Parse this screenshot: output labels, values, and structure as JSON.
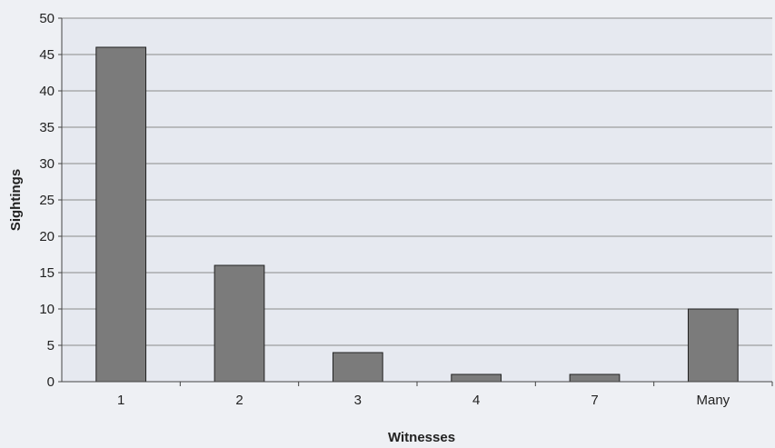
{
  "chart_data": {
    "type": "bar",
    "categories": [
      "1",
      "2",
      "3",
      "4",
      "7",
      "Many"
    ],
    "values": [
      46,
      16,
      4,
      1,
      1,
      10
    ],
    "xlabel": "Witnesses",
    "ylabel": "Sightings",
    "ylim": [
      0,
      50
    ],
    "yticks": [
      0,
      5,
      10,
      15,
      20,
      25,
      30,
      35,
      40,
      45,
      50
    ],
    "grid": true,
    "bar_color": "#7b7b7b",
    "legend": "none"
  }
}
